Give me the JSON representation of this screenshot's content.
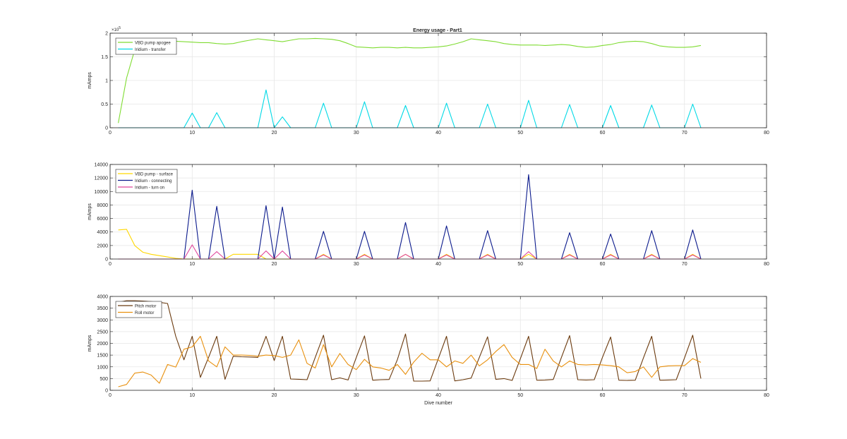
{
  "figure": {
    "title": "Energy usage - Part1"
  },
  "chart_data": [
    {
      "type": "line",
      "title": "Energy usage - Part1",
      "xlabel": "",
      "ylabel": "mAmps",
      "xlim": [
        0,
        80
      ],
      "ylim": [
        0,
        200000
      ],
      "xticks": [
        0,
        10,
        20,
        30,
        40,
        50,
        60,
        70,
        80
      ],
      "yticks": [
        0,
        50000,
        100000,
        150000,
        200000
      ],
      "ytick_labels": [
        "0",
        "0.5",
        "1",
        "1.5",
        "2"
      ],
      "exponent_label": "×10",
      "exponent_power": "5",
      "grid": true,
      "legend": "top-left",
      "series": [
        {
          "name": "VBD pump apogee",
          "color": "#7fdc32",
          "x": [
            1,
            2,
            3,
            4,
            5,
            6,
            7,
            8,
            9,
            10,
            11,
            12,
            13,
            14,
            15,
            16,
            17,
            18,
            19,
            20,
            21,
            22,
            23,
            24,
            25,
            26,
            27,
            28,
            29,
            30,
            31,
            32,
            33,
            34,
            35,
            36,
            37,
            38,
            39,
            40,
            41,
            42,
            43,
            44,
            45,
            46,
            47,
            48,
            49,
            50,
            51,
            52,
            53,
            54,
            55,
            56,
            57,
            58,
            59,
            60,
            61,
            62,
            63,
            64,
            65,
            66,
            67,
            68,
            69,
            70,
            71,
            72
          ],
          "values": [
            10000,
            105000,
            165000,
            183000,
            185000,
            184000,
            183000,
            183000,
            182000,
            181000,
            180000,
            180000,
            178000,
            177000,
            178000,
            182000,
            185000,
            188000,
            186000,
            184000,
            182000,
            185000,
            188000,
            188000,
            189000,
            188000,
            187000,
            184000,
            178000,
            171000,
            170000,
            169000,
            170000,
            170000,
            169000,
            170000,
            169000,
            169000,
            170000,
            171000,
            173000,
            177000,
            182000,
            188000,
            186000,
            184000,
            182000,
            178000,
            176000,
            175000,
            175000,
            175000,
            174000,
            175000,
            176000,
            175000,
            172000,
            170000,
            171000,
            174000,
            176000,
            180000,
            182000,
            183000,
            182000,
            178000,
            173000,
            171000,
            170000,
            170000,
            171000,
            174000
          ]
        },
        {
          "name": "Iridium - transfer",
          "color": "#00d9e6",
          "x": [
            1,
            9,
            10,
            11,
            12,
            13,
            14,
            18,
            19,
            20,
            21,
            22,
            25,
            26,
            27,
            30,
            31,
            32,
            35,
            36,
            37,
            40,
            41,
            42,
            45,
            46,
            47,
            50,
            51,
            52,
            55,
            56,
            57,
            60,
            61,
            62,
            65,
            66,
            67,
            70,
            71,
            72
          ],
          "values": [
            0,
            0,
            31000,
            0,
            0,
            32000,
            0,
            0,
            80000,
            0,
            23000,
            0,
            0,
            52000,
            0,
            0,
            55000,
            0,
            0,
            47000,
            0,
            0,
            52000,
            0,
            0,
            50000,
            0,
            0,
            58000,
            0,
            0,
            49000,
            0,
            0,
            47000,
            0,
            0,
            48000,
            0,
            0,
            50000,
            0
          ]
        }
      ]
    },
    {
      "type": "line",
      "title": "",
      "xlabel": "",
      "ylabel": "mAmps",
      "xlim": [
        0,
        80
      ],
      "ylim": [
        0,
        14000
      ],
      "xticks": [
        0,
        10,
        20,
        30,
        40,
        50,
        60,
        70,
        80
      ],
      "yticks": [
        0,
        2000,
        4000,
        6000,
        8000,
        10000,
        12000,
        14000
      ],
      "ytick_labels": [
        "0",
        "2000",
        "4000",
        "6000",
        "8000",
        "10000",
        "12000",
        "14000"
      ],
      "grid": true,
      "legend": "top-left",
      "series": [
        {
          "name": "VBD pump - surface",
          "color": "#ffd700",
          "x": [
            1,
            2,
            3,
            4,
            5,
            6,
            7,
            8,
            9,
            10,
            11,
            12,
            13,
            14,
            15,
            16,
            17,
            18,
            19,
            20,
            21,
            22,
            25,
            26,
            27,
            30,
            31,
            32,
            35,
            36,
            37,
            40,
            41,
            42,
            45,
            46,
            47,
            50,
            51,
            52,
            55,
            56,
            57,
            60,
            61,
            62,
            65,
            66,
            67,
            70,
            71,
            72
          ],
          "values": [
            4300,
            4400,
            2000,
            1000,
            700,
            500,
            300,
            100,
            0,
            0,
            0,
            0,
            0,
            0,
            700,
            700,
            700,
            700,
            0,
            0,
            0,
            0,
            0,
            700,
            0,
            0,
            700,
            0,
            0,
            700,
            0,
            0,
            700,
            0,
            0,
            700,
            0,
            0,
            700,
            0,
            0,
            700,
            0,
            0,
            700,
            0,
            0,
            700,
            0,
            0,
            700,
            0
          ]
        },
        {
          "name": "Iridium - connecting",
          "color": "#0b1a8c",
          "x": [
            1,
            9,
            10,
            11,
            12,
            13,
            14,
            18,
            19,
            20,
            21,
            22,
            25,
            26,
            27,
            30,
            31,
            32,
            35,
            36,
            37,
            40,
            41,
            42,
            45,
            46,
            47,
            50,
            51,
            52,
            55,
            56,
            57,
            60,
            61,
            62,
            65,
            66,
            67,
            70,
            71,
            72
          ],
          "values": [
            0,
            0,
            10200,
            0,
            0,
            7800,
            0,
            0,
            7900,
            0,
            7700,
            0,
            0,
            4100,
            0,
            0,
            4100,
            0,
            0,
            5400,
            0,
            0,
            4900,
            0,
            0,
            4200,
            0,
            0,
            12500,
            0,
            0,
            3900,
            0,
            0,
            3700,
            0,
            0,
            4200,
            0,
            0,
            4300,
            0
          ]
        },
        {
          "name": "Iridium - turn on",
          "color": "#e0469a",
          "x": [
            1,
            9,
            10,
            11,
            12,
            13,
            14,
            18,
            19,
            20,
            21,
            22,
            25,
            26,
            27,
            30,
            31,
            32,
            35,
            36,
            37,
            40,
            41,
            42,
            45,
            46,
            47,
            50,
            51,
            52,
            55,
            56,
            57,
            60,
            61,
            62,
            65,
            66,
            67,
            70,
            71,
            72
          ],
          "values": [
            0,
            0,
            2100,
            0,
            0,
            1100,
            0,
            0,
            1200,
            0,
            1200,
            0,
            0,
            600,
            0,
            0,
            600,
            0,
            0,
            700,
            0,
            0,
            600,
            0,
            0,
            600,
            0,
            0,
            1100,
            0,
            0,
            600,
            0,
            0,
            600,
            0,
            0,
            600,
            0,
            0,
            600,
            0
          ]
        }
      ]
    },
    {
      "type": "line",
      "title": "",
      "xlabel": "Dive number",
      "ylabel": "mAmps",
      "xlim": [
        0,
        80
      ],
      "ylim": [
        0,
        4000
      ],
      "xticks": [
        0,
        10,
        20,
        30,
        40,
        50,
        60,
        70,
        80
      ],
      "yticks": [
        0,
        500,
        1000,
        1500,
        2000,
        2500,
        3000,
        3500,
        4000
      ],
      "ytick_labels": [
        "0",
        "500",
        "1000",
        "1500",
        "2000",
        "2500",
        "3000",
        "3500",
        "4000"
      ],
      "grid": true,
      "legend": "top-left",
      "series": [
        {
          "name": "Pitch motor",
          "color": "#6b3a0e",
          "x": [
            1,
            2,
            3,
            4,
            5,
            6,
            7,
            8,
            9,
            10,
            11,
            12,
            13,
            14,
            15,
            16,
            17,
            18,
            19,
            20,
            21,
            22,
            23,
            24,
            25,
            26,
            27,
            28,
            29,
            30,
            31,
            32,
            33,
            34,
            35,
            36,
            37,
            38,
            39,
            40,
            41,
            42,
            43,
            44,
            45,
            46,
            47,
            48,
            49,
            50,
            51,
            52,
            53,
            54,
            55,
            56,
            57,
            58,
            59,
            60,
            61,
            62,
            63,
            64,
            65,
            66,
            67,
            68,
            69,
            70,
            71,
            72
          ],
          "values": [
            3750,
            3820,
            3820,
            3800,
            3780,
            3750,
            3700,
            2300,
            1300,
            2300,
            550,
            1400,
            2300,
            470,
            1450,
            1430,
            1420,
            1400,
            2300,
            1270,
            2300,
            480,
            470,
            450,
            1400,
            2350,
            450,
            530,
            440,
            1400,
            2320,
            430,
            450,
            460,
            1300,
            2400,
            390,
            390,
            400,
            1350,
            2300,
            400,
            450,
            520,
            1400,
            2280,
            470,
            500,
            420,
            1350,
            2300,
            430,
            440,
            460,
            1400,
            2330,
            450,
            440,
            450,
            1400,
            2270,
            430,
            420,
            430,
            1380,
            2300,
            430,
            440,
            450,
            1380,
            2350,
            500
          ]
        },
        {
          "name": "Roll motor",
          "color": "#e8900e",
          "x": [
            1,
            2,
            3,
            4,
            5,
            6,
            7,
            8,
            9,
            10,
            11,
            12,
            13,
            14,
            15,
            16,
            17,
            18,
            19,
            20,
            21,
            22,
            23,
            24,
            25,
            26,
            27,
            28,
            29,
            30,
            31,
            32,
            33,
            34,
            35,
            36,
            37,
            38,
            39,
            40,
            41,
            42,
            43,
            44,
            45,
            46,
            47,
            48,
            49,
            50,
            51,
            52,
            53,
            54,
            55,
            56,
            57,
            58,
            59,
            60,
            61,
            62,
            63,
            64,
            65,
            66,
            67,
            68,
            69,
            70,
            71,
            72
          ],
          "values": [
            150,
            250,
            730,
            780,
            650,
            300,
            1100,
            990,
            1750,
            1850,
            2300,
            1250,
            1000,
            1850,
            1500,
            1500,
            1490,
            1450,
            1500,
            1480,
            1400,
            1500,
            2150,
            1150,
            950,
            1950,
            1000,
            1570,
            1100,
            880,
            1320,
            1000,
            950,
            850,
            1100,
            680,
            1200,
            1580,
            1300,
            1300,
            1000,
            1250,
            1150,
            1500,
            1040,
            1300,
            1650,
            1950,
            1400,
            1100,
            1100,
            930,
            1750,
            1250,
            1000,
            1250,
            1100,
            1080,
            1100,
            1080,
            1050,
            1000,
            750,
            800,
            1000,
            550,
            1000,
            1040,
            1050,
            1050,
            1350,
            1190
          ]
        }
      ]
    }
  ]
}
